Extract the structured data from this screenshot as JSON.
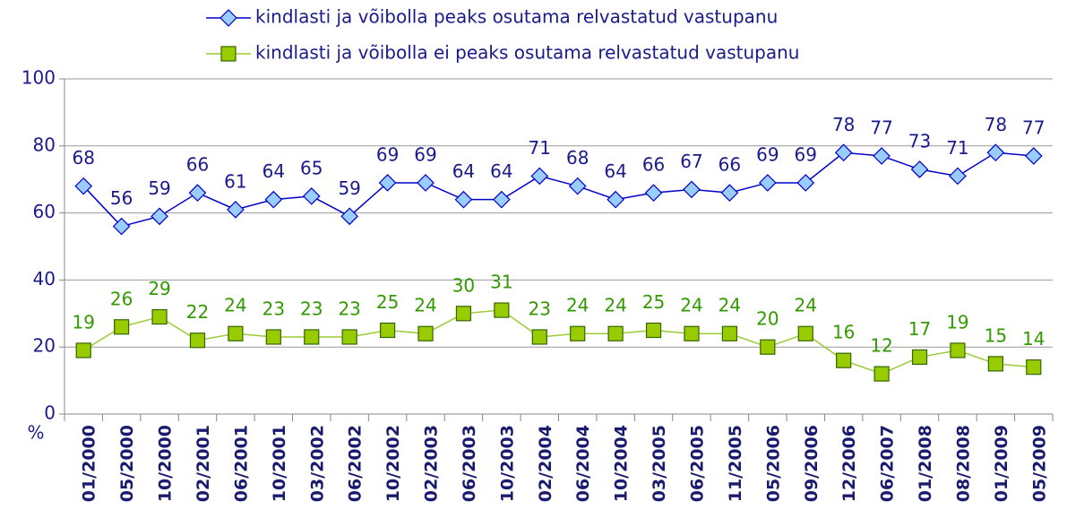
{
  "chart_data": {
    "type": "line",
    "y_label": "%",
    "categories": [
      "01/2000",
      "05/2000",
      "10/2000",
      "02/2001",
      "06/2001",
      "10/2001",
      "03/2002",
      "06/2002",
      "10/2002",
      "02/2003",
      "06/2003",
      "10/2003",
      "02/2004",
      "06/2004",
      "10/2004",
      "03/2005",
      "06/2005",
      "11/2005",
      "05/2006",
      "09/2006",
      "12/2006",
      "06/2007",
      "01/2008",
      "08/2008",
      "01/2009",
      "05/2009"
    ],
    "series": [
      {
        "name": "kindlasti ja võibolla peaks osutama relvastatud vastupanu",
        "color": "#0000cc",
        "marker": "diamond",
        "marker_color": "#99ccff",
        "label_color": "#1a1a8c",
        "values": [
          68,
          56,
          59,
          66,
          61,
          64,
          65,
          59,
          69,
          69,
          64,
          64,
          71,
          68,
          64,
          66,
          67,
          66,
          69,
          69,
          78,
          77,
          73,
          71,
          78,
          77
        ]
      },
      {
        "name": "kindlasti ja võibolla ei peaks osutama relvastatud vastupanu",
        "color": "#99cc33",
        "marker": "square",
        "marker_color": "#99cc00",
        "label_color": "#339900",
        "values": [
          19,
          26,
          29,
          22,
          24,
          23,
          23,
          23,
          25,
          24,
          30,
          31,
          23,
          24,
          24,
          25,
          24,
          24,
          20,
          24,
          16,
          12,
          17,
          19,
          15,
          14
        ]
      }
    ],
    "ylim": [
      0,
      100
    ],
    "yticks": [
      0,
      20,
      40,
      60,
      80,
      100
    ],
    "grid": true
  }
}
